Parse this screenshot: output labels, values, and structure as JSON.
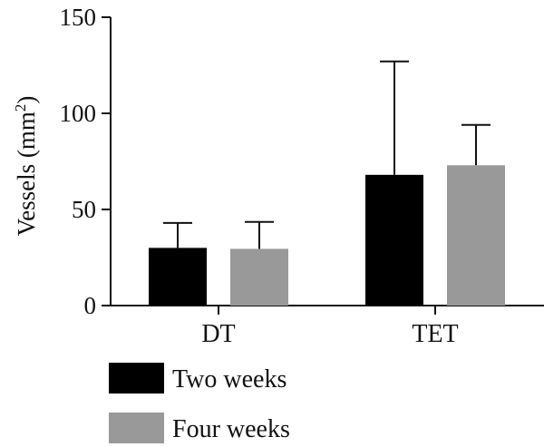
{
  "chart_data": {
    "type": "bar",
    "categories": [
      "DT",
      "TET"
    ],
    "series": [
      {
        "name": "Two weeks",
        "values": [
          30,
          68
        ],
        "errors": [
          13,
          59
        ],
        "color": "#000000"
      },
      {
        "name": "Four weeks",
        "values": [
          29.5,
          73
        ],
        "errors": [
          14,
          21
        ],
        "color": "#999999"
      }
    ],
    "ylabel": "Vessels (mm",
    "ylabel_sup": "2",
    "ylabel_end": ")",
    "ylim": [
      0,
      150
    ],
    "yticks": [
      0,
      50,
      100,
      150
    ],
    "grid": false,
    "legend_position": "bottom-left"
  }
}
